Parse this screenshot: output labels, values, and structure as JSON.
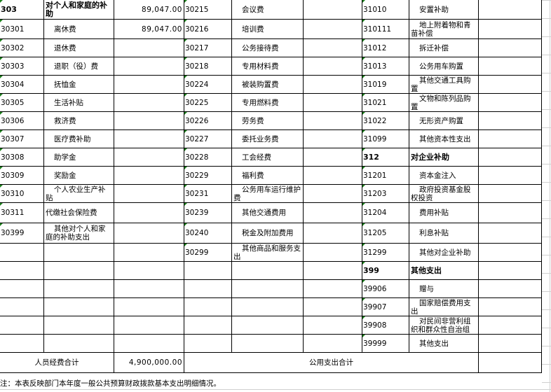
{
  "rows": [
    [
      {
        "code": "303",
        "name": "对个人和家庭的补助",
        "amount": "89,047.00",
        "bold": true
      },
      {
        "code": "30215",
        "name": "会议费",
        "amount": ""
      },
      {
        "code": "31010",
        "name": "安置补助",
        "amount": ""
      }
    ],
    [
      {
        "code": "30301",
        "name": "离休费",
        "amount": "89,047.00"
      },
      {
        "code": "30216",
        "name": "培训费",
        "amount": ""
      },
      {
        "code": "310111",
        "name": "地上附着物和青苗补偿",
        "amount": ""
      }
    ],
    [
      {
        "code": "30302",
        "name": "退休费",
        "amount": ""
      },
      {
        "code": "30217",
        "name": "公务接待费",
        "amount": ""
      },
      {
        "code": "31012",
        "name": "拆迁补偿",
        "amount": ""
      }
    ],
    [
      {
        "code": "30303",
        "name": "退职（役）费",
        "amount": ""
      },
      {
        "code": "30218",
        "name": "专用材料费",
        "amount": ""
      },
      {
        "code": "31013",
        "name": "公务用车购置",
        "amount": ""
      }
    ],
    [
      {
        "code": "30304",
        "name": "抚恤金",
        "amount": ""
      },
      {
        "code": "30224",
        "name": "被装购置费",
        "amount": ""
      },
      {
        "code": "31019",
        "name": "其他交通工具购置",
        "amount": ""
      }
    ],
    [
      {
        "code": "30305",
        "name": "生活补贴",
        "amount": ""
      },
      {
        "code": "30225",
        "name": "专用燃料费",
        "amount": ""
      },
      {
        "code": "31021",
        "name": "文物和陈列品购置",
        "amount": ""
      }
    ],
    [
      {
        "code": "30306",
        "name": "救济费",
        "amount": ""
      },
      {
        "code": "30226",
        "name": "劳务费",
        "amount": ""
      },
      {
        "code": "31022",
        "name": "无形资产购置",
        "amount": ""
      }
    ],
    [
      {
        "code": "30307",
        "name": "医疗费补助",
        "amount": ""
      },
      {
        "code": "30227",
        "name": "委托业务费",
        "amount": ""
      },
      {
        "code": "31099",
        "name": "其他资本性支出",
        "amount": ""
      }
    ],
    [
      {
        "code": "30308",
        "name": "助学金",
        "amount": ""
      },
      {
        "code": "30228",
        "name": "工会经费",
        "amount": ""
      },
      {
        "code": "312",
        "name": "对企业补助",
        "amount": "",
        "bold": true
      }
    ],
    [
      {
        "code": "30309",
        "name": "奖励金",
        "amount": ""
      },
      {
        "code": "30229",
        "name": "福利费",
        "amount": ""
      },
      {
        "code": "31201",
        "name": "资本金注入",
        "amount": ""
      }
    ],
    [
      {
        "code": "30310",
        "name": "个人农业生产补贴",
        "amount": ""
      },
      {
        "code": "30231",
        "name": "公务用车运行维护费",
        "amount": ""
      },
      {
        "code": "31203",
        "name": "政府投资基金股权投资",
        "amount": ""
      }
    ],
    [
      {
        "code": "30311",
        "name": "代缴社会保险费",
        "amount": "",
        "noindent": true
      },
      {
        "code": "30239",
        "name": "其他交通费用",
        "amount": ""
      },
      {
        "code": "31204",
        "name": "费用补贴",
        "amount": ""
      }
    ],
    [
      {
        "code": "30399",
        "name": "其他对个人和家庭的补助支出",
        "amount": ""
      },
      {
        "code": "30240",
        "name": "税金及附加费用",
        "amount": ""
      },
      {
        "code": "31205",
        "name": "利息补贴",
        "amount": ""
      }
    ],
    [
      {
        "code": "",
        "name": "",
        "amount": ""
      },
      {
        "code": "30299",
        "name": "其他商品和服务支出",
        "amount": ""
      },
      {
        "code": "31299",
        "name": "其他对企业补助",
        "amount": ""
      }
    ],
    [
      {
        "code": "",
        "name": "",
        "amount": ""
      },
      {
        "code": "",
        "name": "",
        "amount": ""
      },
      {
        "code": "399",
        "name": "其他支出",
        "amount": "",
        "bold": true
      }
    ],
    [
      {
        "code": "",
        "name": "",
        "amount": ""
      },
      {
        "code": "",
        "name": "",
        "amount": ""
      },
      {
        "code": "39906",
        "name": "赠与",
        "amount": ""
      }
    ],
    [
      {
        "code": "",
        "name": "",
        "amount": ""
      },
      {
        "code": "",
        "name": "",
        "amount": ""
      },
      {
        "code": "39907",
        "name": "国家赔偿费用支出",
        "amount": ""
      }
    ],
    [
      {
        "code": "",
        "name": "",
        "amount": ""
      },
      {
        "code": "",
        "name": "",
        "amount": ""
      },
      {
        "code": "39908",
        "name": "对民间非营利组织和群众性自治组",
        "amount": ""
      }
    ],
    [
      {
        "code": "",
        "name": "",
        "amount": ""
      },
      {
        "code": "",
        "name": "",
        "amount": ""
      },
      {
        "code": "39999",
        "name": "其他支出",
        "amount": ""
      }
    ]
  ],
  "totals": {
    "personnel_label": "人员经费合计",
    "personnel_amount": "4,900,000.00",
    "public_label": "公用支出合计",
    "public_amount": ""
  },
  "note": "注：本表反映部门本年度一般公共预算财政拨款基本支出明细情况。",
  "colors": {
    "border": "#000000",
    "marker": "#1a7f1a",
    "gridline": "#d0d0d0"
  }
}
